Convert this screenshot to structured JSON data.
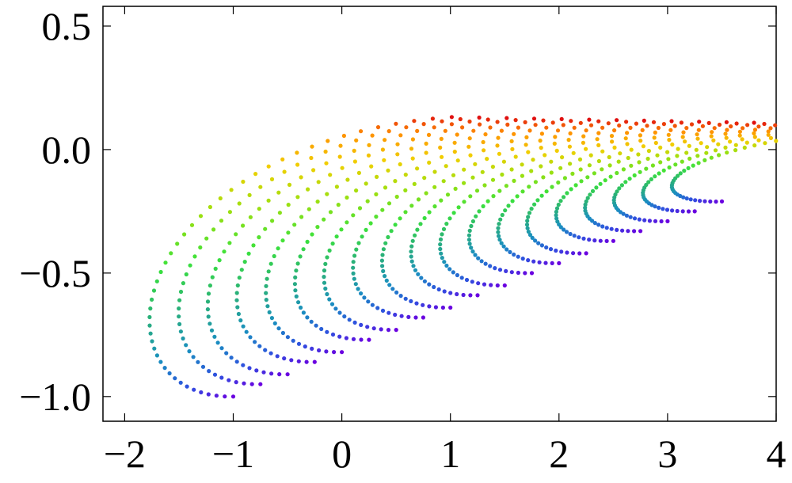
{
  "chart_data": {
    "type": "scatter",
    "title": "",
    "xlabel": "",
    "ylabel": "",
    "xlim": [
      -2.2,
      4.0
    ],
    "ylim": [
      -1.1,
      0.58
    ],
    "grid": false,
    "legend": "none",
    "x_ticks": [
      {
        "value": -2,
        "label": "−2"
      },
      {
        "value": -1,
        "label": "−1"
      },
      {
        "value": 0,
        "label": "0"
      },
      {
        "value": 1,
        "label": "1"
      },
      {
        "value": 2,
        "label": "2"
      },
      {
        "value": 3,
        "label": "3"
      },
      {
        "value": 4,
        "label": "4"
      }
    ],
    "y_ticks": [
      {
        "value": 0.5,
        "label": "0.5"
      },
      {
        "value": 0.0,
        "label": "0.0"
      },
      {
        "value": -0.5,
        "label": "−0.5"
      },
      {
        "value": -1.0,
        "label": "−1.0"
      }
    ],
    "color_scale": [
      "#6a00e0",
      "#2f4fe0",
      "#1a8fc0",
      "#2ab07a",
      "#3be23b",
      "#9be010",
      "#f0d000",
      "#ff9000",
      "#e01010"
    ],
    "families": [
      {
        "start": [
          -1.0,
          -1.0
        ]
      },
      {
        "start": [
          -0.75,
          -0.95
        ]
      },
      {
        "start": [
          -0.5,
          -0.91
        ]
      },
      {
        "start": [
          -0.25,
          -0.86
        ]
      },
      {
        "start": [
          0.0,
          -0.82
        ]
      },
      {
        "start": [
          0.25,
          -0.77
        ]
      },
      {
        "start": [
          0.5,
          -0.73
        ]
      },
      {
        "start": [
          0.75,
          -0.68
        ]
      },
      {
        "start": [
          1.0,
          -0.64
        ]
      },
      {
        "start": [
          1.25,
          -0.59
        ]
      },
      {
        "start": [
          1.5,
          -0.55
        ]
      },
      {
        "start": [
          1.75,
          -0.5
        ]
      },
      {
        "start": [
          2.0,
          -0.46
        ]
      },
      {
        "start": [
          2.25,
          -0.42
        ]
      },
      {
        "start": [
          2.5,
          -0.37
        ]
      },
      {
        "start": [
          2.75,
          -0.33
        ]
      },
      {
        "start": [
          3.0,
          -0.29
        ]
      },
      {
        "start": [
          3.25,
          -0.25
        ]
      },
      {
        "start": [
          3.5,
          -0.21
        ]
      }
    ]
  }
}
